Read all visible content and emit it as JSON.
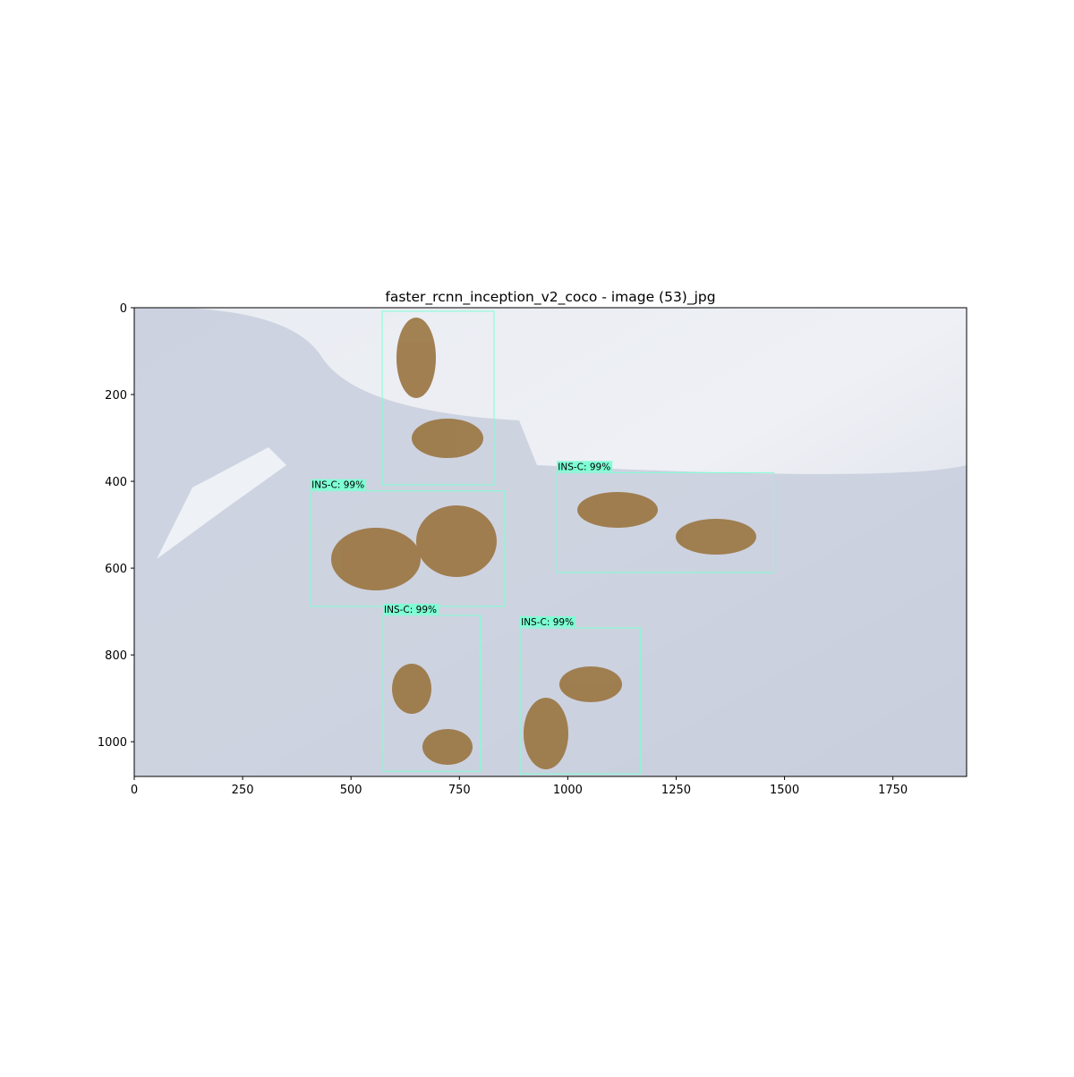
{
  "chart_data": {
    "type": "detection",
    "title": "faster_rcnn_inception_v2_coco - image (53)_jpg",
    "xlim": [
      0,
      1920
    ],
    "ylim": [
      1080,
      0
    ],
    "xticks": [
      0,
      250,
      500,
      750,
      1000,
      1250,
      1500,
      1750
    ],
    "yticks": [
      0,
      200,
      400,
      600,
      800,
      1000
    ],
    "color": "#7fffd4",
    "boxes": [
      {
        "xmin": 572,
        "ymin": 8,
        "xmax": 830,
        "ymax": 408
      },
      {
        "label": "INS-C: 99%",
        "xmin": 407,
        "ymin": 422,
        "xmax": 853,
        "ymax": 688
      },
      {
        "label": "INS-C: 99%",
        "xmin": 975,
        "ymin": 380,
        "xmax": 1475,
        "ymax": 610
      },
      {
        "label": "INS-C: 99%",
        "xmin": 574,
        "ymin": 709,
        "xmax": 798,
        "ymax": 1068
      },
      {
        "label": "INS-C: 99%",
        "xmin": 890,
        "ymin": 738,
        "xmax": 1167,
        "ymax": 1074
      }
    ]
  }
}
